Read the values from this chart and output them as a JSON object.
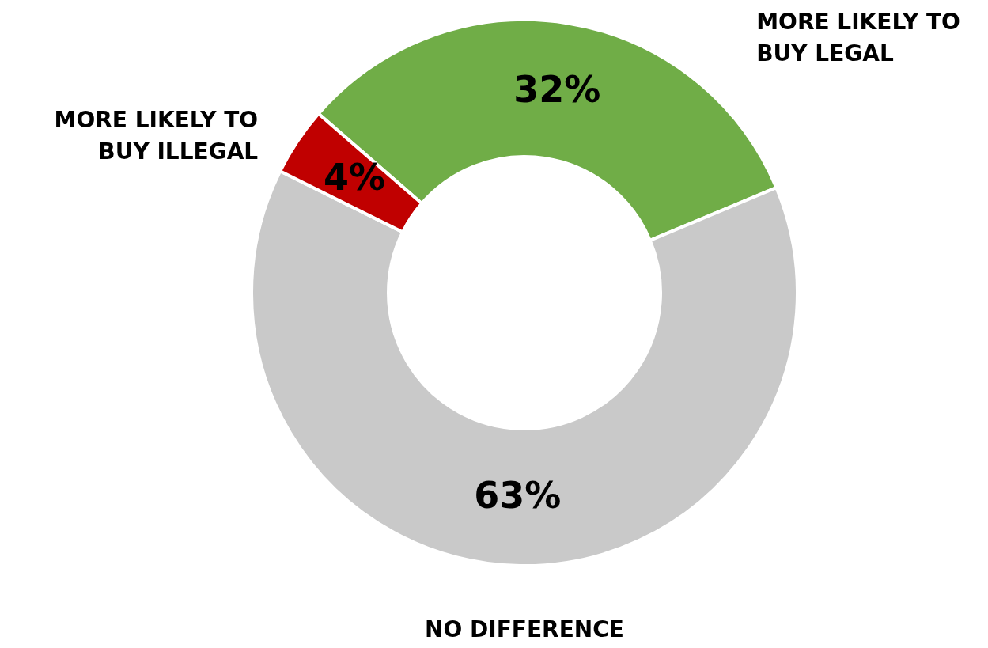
{
  "chart_data": {
    "type": "donut",
    "categories": [
      "MORE LIKELY TO BUY LEGAL",
      "NO DIFFERENCE",
      "MORE LIKELY TO BUY ILLEGAL"
    ],
    "values": [
      32,
      63,
      4
    ],
    "colors": [
      "#70ad47",
      "#c9c9c9",
      "#c00000"
    ],
    "value_labels": [
      "32%",
      "63%",
      "4%"
    ]
  }
}
